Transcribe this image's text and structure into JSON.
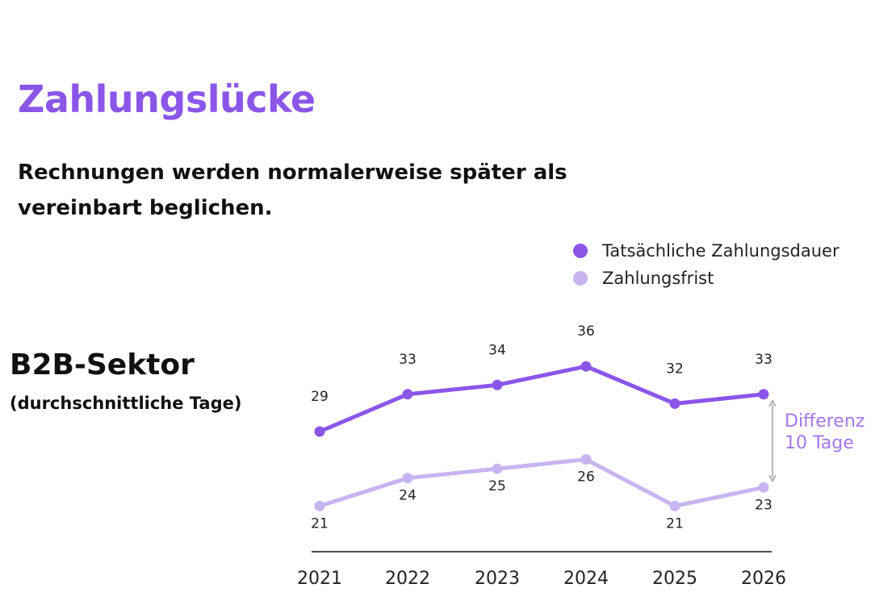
{
  "title": "Zahlungslücke",
  "subtitle": "Rechnungen werden normalerweise später als vereinbart beglichen.",
  "sector": {
    "title": "B2B-Sektor",
    "subtitle": "(durchschnittliche Tage)"
  },
  "colors": {
    "title": "#8b55e8",
    "actual": "#8b55e8",
    "term": "#c9b3f0",
    "annotation": "#a575ef"
  },
  "chart_data": {
    "type": "line",
    "x": [
      "2021",
      "2022",
      "2023",
      "2024",
      "2025",
      "2026"
    ],
    "ylim": [
      18,
      40
    ],
    "grid": false,
    "legend_position": "top-right",
    "series": [
      {
        "name": "Tatsächliche Zahlungsdauer",
        "values": [
          29,
          33,
          34,
          36,
          32,
          33
        ]
      },
      {
        "name": "Zahlungsfrist",
        "values": [
          21,
          24,
          25,
          26,
          21,
          23
        ]
      }
    ],
    "annotation": {
      "line1": "Differenz",
      "line2": "10 Tage"
    }
  }
}
